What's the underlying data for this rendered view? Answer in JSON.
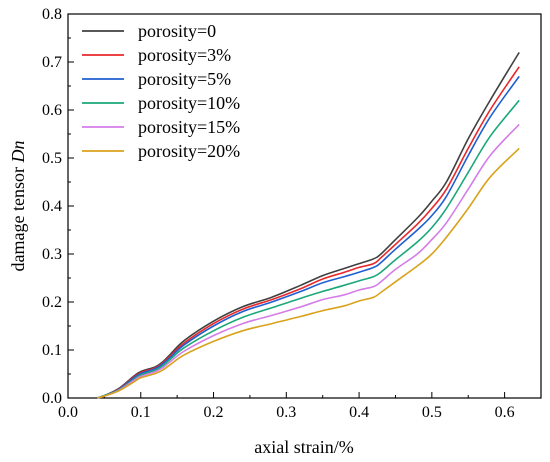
{
  "chart_data": {
    "type": "line",
    "xlabel": "axial strain/%",
    "ylabel_main": "damage tensor ",
    "ylabel_italic": "Dn",
    "xlim": [
      0.0,
      0.65
    ],
    "ylim": [
      0.0,
      0.8
    ],
    "xticks": [
      "0.0",
      "0.1",
      "0.2",
      "0.3",
      "0.4",
      "0.5",
      "0.6"
    ],
    "yticks": [
      "0.0",
      "0.1",
      "0.2",
      "0.3",
      "0.4",
      "0.5",
      "0.6",
      "0.7",
      "0.8"
    ],
    "grid": false,
    "legend_position": "top-left",
    "x": [
      0.04,
      0.05,
      0.07,
      0.09,
      0.1,
      0.12,
      0.13,
      0.14,
      0.16,
      0.2,
      0.24,
      0.28,
      0.32,
      0.35,
      0.38,
      0.4,
      0.42,
      0.43,
      0.45,
      0.48,
      0.5,
      0.52,
      0.55,
      0.58,
      0.62
    ],
    "series": [
      {
        "name": "porosity=0",
        "color": "#404040",
        "values": [
          0.0,
          0.005,
          0.02,
          0.045,
          0.055,
          0.065,
          0.075,
          0.09,
          0.12,
          0.16,
          0.19,
          0.21,
          0.235,
          0.255,
          0.27,
          0.28,
          0.29,
          0.3,
          0.33,
          0.375,
          0.41,
          0.45,
          0.54,
          0.62,
          0.72
        ]
      },
      {
        "name": "porosity=3%",
        "color": "#e8282b",
        "values": [
          0.0,
          0.005,
          0.019,
          0.043,
          0.053,
          0.063,
          0.073,
          0.087,
          0.115,
          0.155,
          0.185,
          0.205,
          0.228,
          0.248,
          0.262,
          0.272,
          0.28,
          0.292,
          0.32,
          0.362,
          0.395,
          0.435,
          0.52,
          0.6,
          0.69
        ]
      },
      {
        "name": "porosity=5%",
        "color": "#1f5fd1",
        "values": [
          0.0,
          0.005,
          0.018,
          0.041,
          0.051,
          0.061,
          0.071,
          0.084,
          0.111,
          0.15,
          0.18,
          0.2,
          0.222,
          0.24,
          0.253,
          0.262,
          0.272,
          0.282,
          0.31,
          0.35,
          0.38,
          0.42,
          0.505,
          0.585,
          0.67
        ]
      },
      {
        "name": "porosity=10%",
        "color": "#1aa87a",
        "values": [
          0.0,
          0.005,
          0.017,
          0.038,
          0.048,
          0.058,
          0.067,
          0.08,
          0.105,
          0.14,
          0.168,
          0.188,
          0.208,
          0.222,
          0.235,
          0.244,
          0.253,
          0.262,
          0.288,
          0.325,
          0.355,
          0.395,
          0.47,
          0.545,
          0.62
        ]
      },
      {
        "name": "porosity=15%",
        "color": "#d47de8",
        "values": [
          0.0,
          0.004,
          0.016,
          0.036,
          0.045,
          0.055,
          0.063,
          0.075,
          0.098,
          0.13,
          0.155,
          0.172,
          0.19,
          0.205,
          0.215,
          0.225,
          0.232,
          0.242,
          0.268,
          0.3,
          0.33,
          0.365,
          0.435,
          0.505,
          0.57
        ]
      },
      {
        "name": "porosity=20%",
        "color": "#d9a21b",
        "values": [
          0.0,
          0.004,
          0.015,
          0.033,
          0.042,
          0.051,
          0.058,
          0.069,
          0.09,
          0.118,
          0.14,
          0.155,
          0.17,
          0.182,
          0.192,
          0.202,
          0.21,
          0.22,
          0.242,
          0.275,
          0.3,
          0.335,
          0.395,
          0.46,
          0.52
        ]
      }
    ]
  }
}
